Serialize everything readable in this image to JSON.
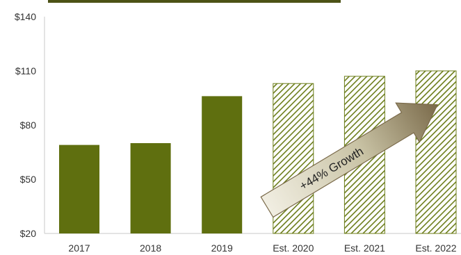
{
  "chart_data": {
    "type": "bar",
    "categories": [
      "2017",
      "2018",
      "2019",
      "Est. 2020",
      "Est. 2021",
      "Est. 2022"
    ],
    "values": [
      69,
      70,
      96,
      103,
      107,
      110
    ],
    "estimated": [
      false,
      false,
      false,
      true,
      true,
      true
    ],
    "ylim": [
      20,
      140
    ],
    "yticks": [
      "$140",
      "$110",
      "$80",
      "$50",
      "$20"
    ],
    "ytick_values": [
      140,
      110,
      80,
      50,
      20
    ],
    "title": "",
    "xlabel": "",
    "ylabel": "",
    "grid": false,
    "annotation": "+44% Growth",
    "colors": {
      "actual": "#5f6f0f",
      "estimate": "#6c7d1a",
      "arrow_fill": "#d8d4bf",
      "arrow_stroke": "#7a6a4a",
      "header_bar": "#4c5216"
    }
  }
}
